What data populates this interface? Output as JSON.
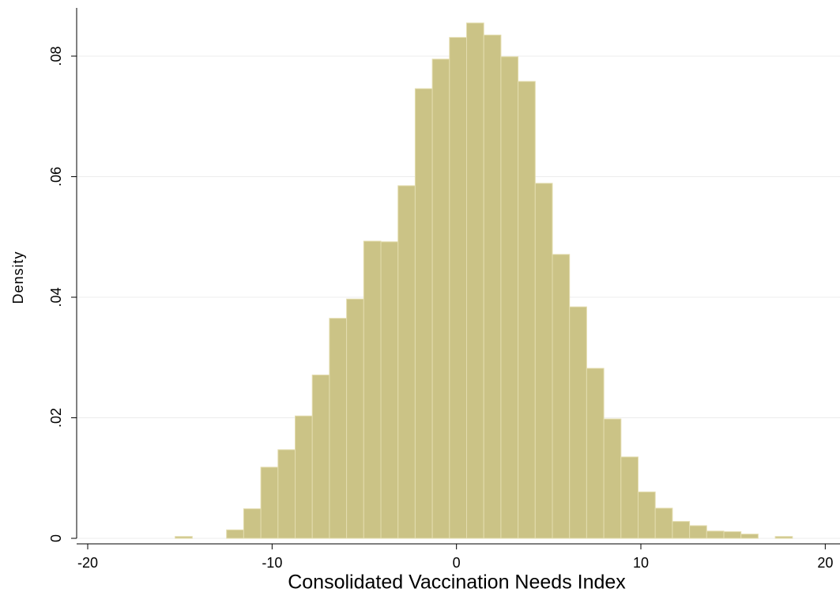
{
  "chart_data": {
    "type": "histogram",
    "xlabel": "Consolidated Vaccination Needs Index",
    "ylabel": "Density",
    "bins": [
      -15.26,
      -14.33,
      -13.4,
      -12.47,
      -11.54,
      -10.61,
      -9.68,
      -8.75,
      -7.82,
      -6.89,
      -5.96,
      -5.03,
      -4.1,
      -3.17,
      -2.24,
      -1.31,
      -0.38,
      0.55,
      1.48,
      2.41,
      3.34,
      4.27,
      5.2,
      6.13,
      7.06,
      7.99,
      8.92,
      9.85,
      10.78,
      11.71,
      12.64,
      13.57,
      14.5,
      15.43,
      16.36,
      17.29,
      18.22
    ],
    "values": [
      0.0003,
      0,
      0,
      0.0014,
      0.0049,
      0.0118,
      0.0147,
      0.0203,
      0.0271,
      0.0365,
      0.0397,
      0.0493,
      0.0492,
      0.0585,
      0.0746,
      0.0795,
      0.0831,
      0.0855,
      0.0835,
      0.0799,
      0.0758,
      0.0589,
      0.0471,
      0.0384,
      0.0282,
      0.0198,
      0.0135,
      0.0077,
      0.005,
      0.0028,
      0.0021,
      0.0012,
      0.0011,
      0.0007,
      0,
      0.0003
    ],
    "color": "#cbc386",
    "xlim": [
      -20.6,
      20.8
    ],
    "xticks": [
      -20,
      -10,
      0,
      10,
      20
    ],
    "ylim": [
      0,
      0.088
    ],
    "yticks": [
      0,
      {
        "value": 0.02,
        "label": ".02"
      },
      {
        "value": 0.04,
        "label": ".04"
      },
      {
        "value": 0.06,
        "label": ".06"
      },
      {
        "value": 0.08,
        "label": ".08"
      }
    ],
    "grid": true
  }
}
